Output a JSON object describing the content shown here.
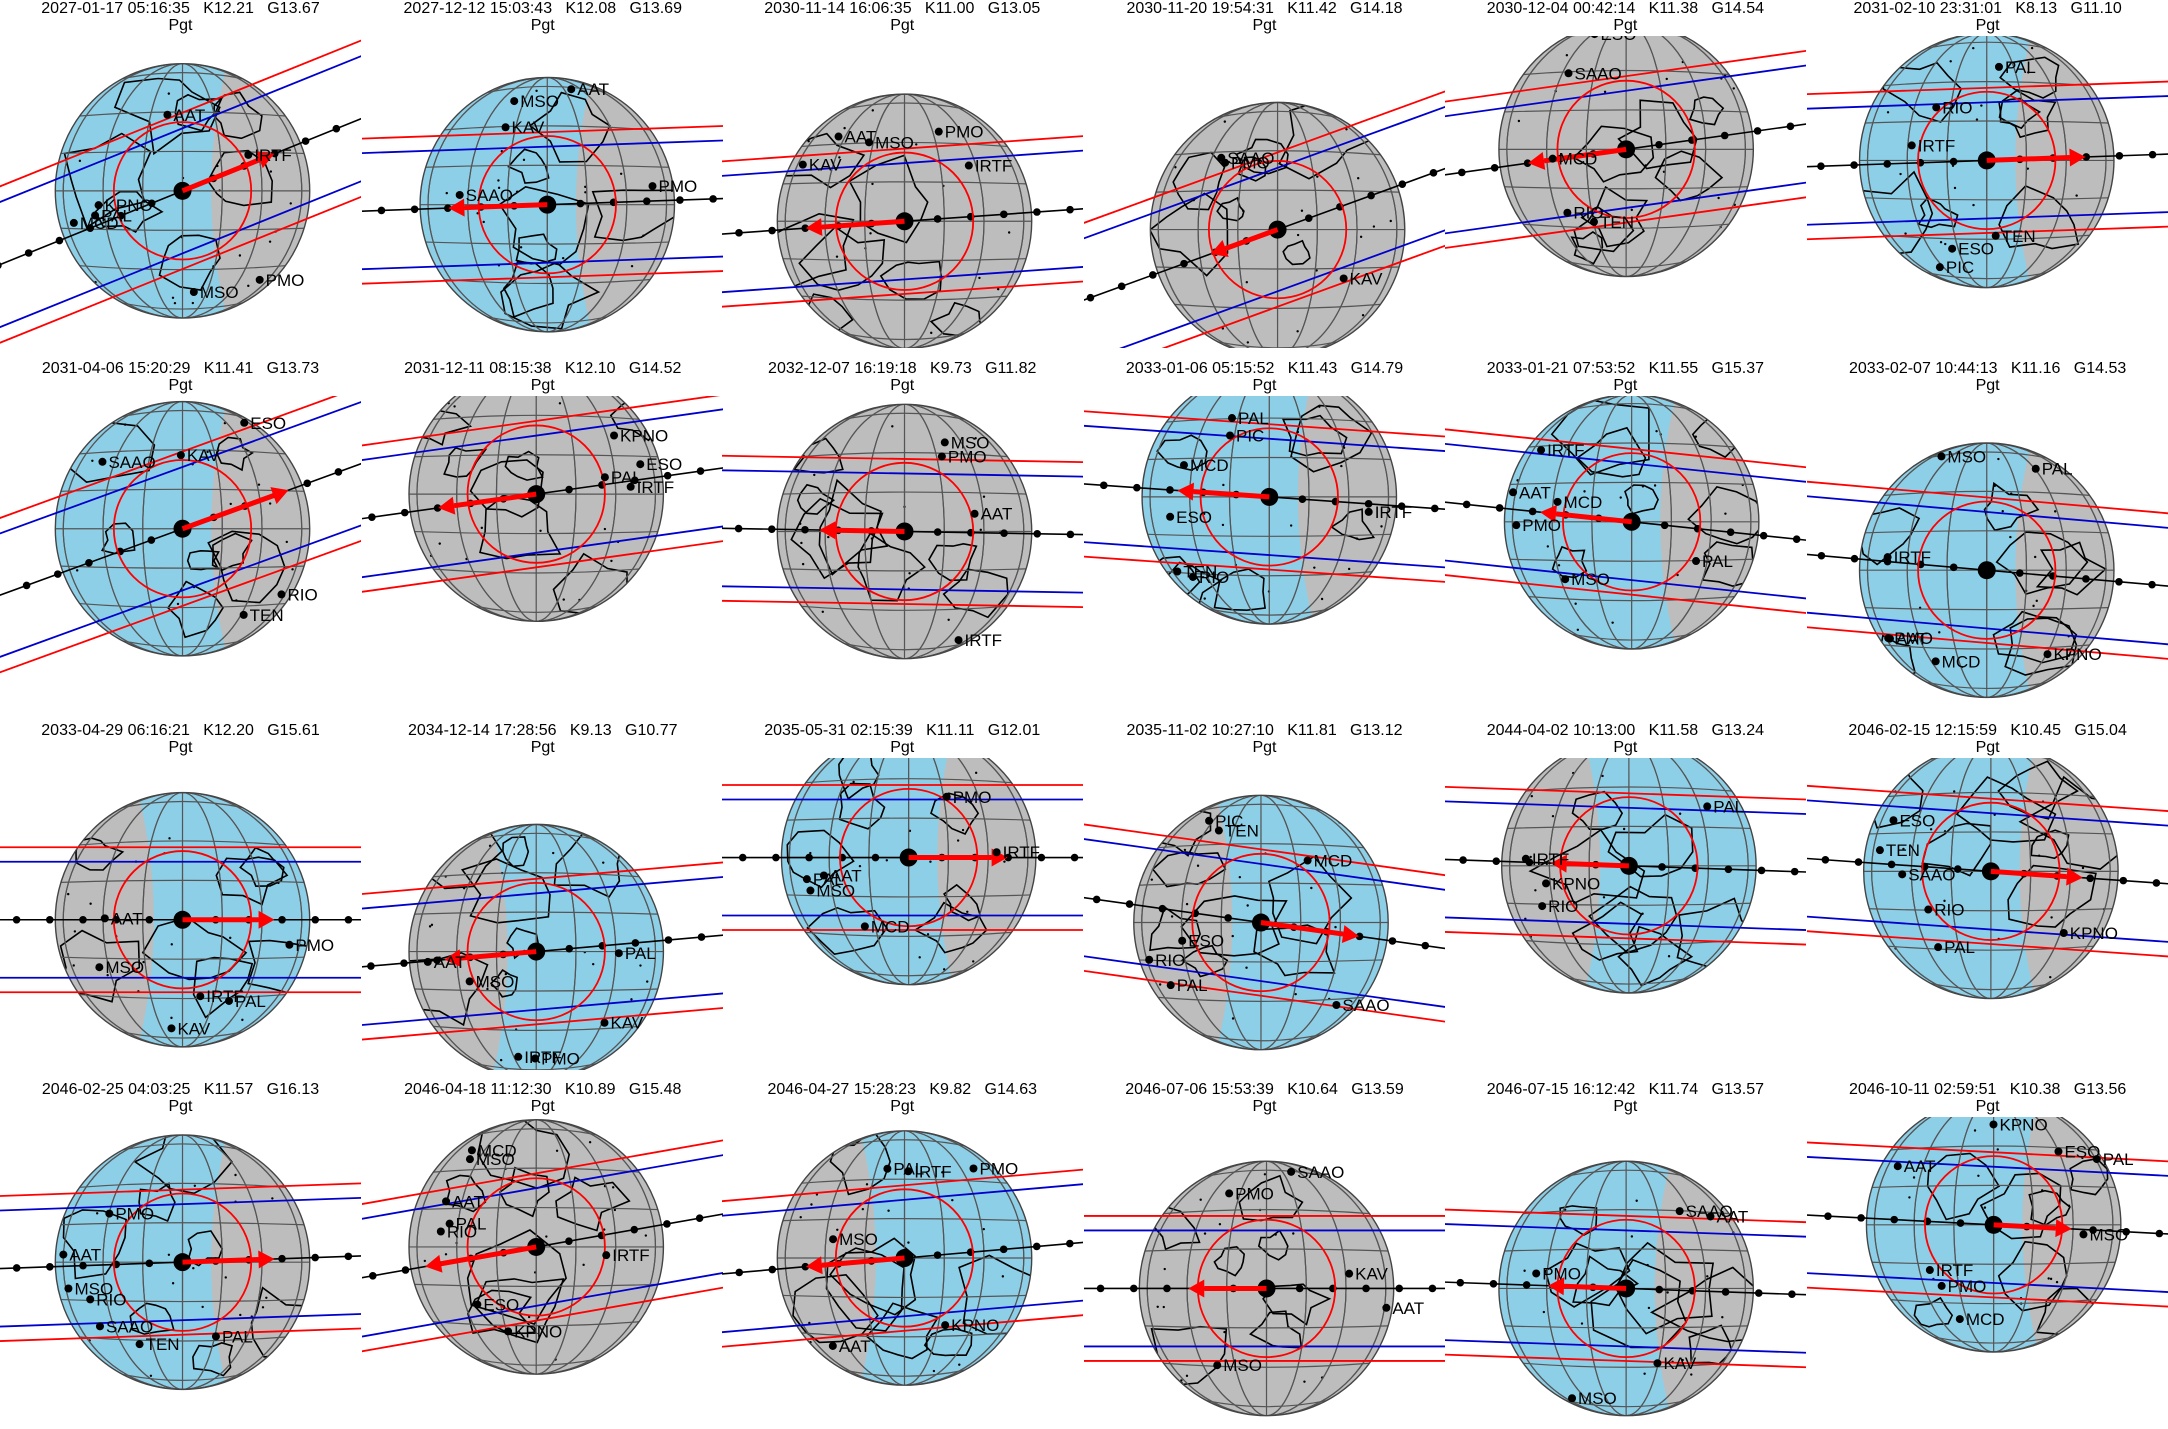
{
  "figure": {
    "colors": {
      "land_shadow": "#bebebe",
      "ocean": "#8ecfe8",
      "night_gray": "#bdbdbd",
      "graticule": "#555555",
      "path_line": "#000000",
      "limit_line": "#ff0000",
      "center_line": "#0000cc",
      "circle": "#ff0000",
      "arrow": "#ff0000"
    },
    "panels": [
      {
        "header": "2027-01-17 05:16:35   K12.21   G13.67",
        "object": "Pgt",
        "labels": [
          "PMO",
          "PAL",
          "MCD",
          "IRTF",
          "AAT",
          "MSO",
          "KPNO"
        ],
        "day_side": "left"
      },
      {
        "header": "2027-12-12 15:03:43   K12.08   G13.69",
        "object": "Pgt",
        "labels": [
          "PMO",
          "KAV",
          "SAAO",
          "AAT",
          "MSO"
        ],
        "day_side": "left"
      },
      {
        "header": "2030-11-14 16:06:35   K11.00   G13.05",
        "object": "Pgt",
        "labels": [
          "PMO",
          "IRTF",
          "KAV",
          "AAT",
          "MSO"
        ],
        "day_side": "none"
      },
      {
        "header": "2030-11-20 19:54:31   K11.42   G14.18",
        "object": "Pgt",
        "labels": [
          "PMO",
          "KAV",
          "SAAO"
        ],
        "day_side": "none"
      },
      {
        "header": "2030-12-04 00:42:14   K11.38   G14.54",
        "object": "Pgt",
        "labels": [
          "MCD",
          "TEN",
          "ESO",
          "RIO",
          "SAAO"
        ],
        "day_side": "none"
      },
      {
        "header": "2031-02-10 23:31:01   K8.13   G11.10",
        "object": "Pgt",
        "labels": [
          "PIC",
          "IRTF",
          "PAL",
          "TEN",
          "RIO",
          "ESO"
        ],
        "day_side": "left"
      },
      {
        "header": "2031-04-06 15:20:29   K11.41   G13.73",
        "object": "Pgt",
        "labels": [
          "TEN",
          "KAV",
          "ESO",
          "RIO",
          "SAAO"
        ],
        "day_side": "left"
      },
      {
        "header": "2031-12-11 08:15:38   K12.10   G14.52",
        "object": "Pgt",
        "labels": [
          "IRTF",
          "PAL",
          "KPNO",
          "ESO"
        ],
        "day_side": "none"
      },
      {
        "header": "2032-12-07 16:19:18   K9.73   G11.82",
        "object": "Pgt",
        "labels": [
          "PMO",
          "IRTF",
          "AAT",
          "MSO"
        ],
        "day_side": "none"
      },
      {
        "header": "2033-01-06 05:15:52   K11.43   G14.79",
        "object": "Pgt",
        "labels": [
          "PIC",
          "TEN",
          "IRTF",
          "PAL",
          "MCD",
          "RIO",
          "ESO"
        ],
        "day_side": "left"
      },
      {
        "header": "2033-01-21 07:53:52   K11.55   G15.37",
        "object": "Pgt",
        "labels": [
          "PMO",
          "IRTF",
          "PAL",
          "MCD",
          "AAT",
          "MSO"
        ],
        "day_side": "left"
      },
      {
        "header": "2033-02-07 10:44:13   K11.16   G14.53",
        "object": "Pgt",
        "labels": [
          "MCD",
          "PAL",
          "KPNO",
          "PMO",
          "IRTF",
          "AAT",
          "MSO"
        ],
        "day_side": "left"
      },
      {
        "header": "2033-04-29 06:16:21   K12.20   G15.61",
        "object": "Pgt",
        "labels": [
          "PAL",
          "PMO",
          "IRTF",
          "KAV",
          "AAT",
          "MSO"
        ],
        "day_side": "right"
      },
      {
        "header": "2034-12-14 17:28:56   K9.13   G10.77",
        "object": "Pgt",
        "labels": [
          "PAL",
          "PMO",
          "IRTF",
          "KAV",
          "AAT",
          "MSO"
        ],
        "day_side": "right"
      },
      {
        "header": "2035-05-31 02:15:39   K11.11   G12.01",
        "object": "Pgt",
        "labels": [
          "PMO",
          "PAL",
          "MCD",
          "IRTF",
          "AAT",
          "MSO"
        ],
        "day_side": "left"
      },
      {
        "header": "2035-11-02 10:27:10   K11.81   G13.12",
        "object": "Pgt",
        "labels": [
          "PIC",
          "TEN",
          "PAL",
          "MCD",
          "RIO",
          "ESO",
          "SAAO"
        ],
        "day_side": "right"
      },
      {
        "header": "2044-04-02 10:13:00   K11.58   G13.24",
        "object": "Pgt",
        "labels": [
          "IRTF",
          "PAL",
          "KPNO",
          "ESO",
          "RIO"
        ],
        "day_side": "right"
      },
      {
        "header": "2046-02-15 12:15:59   K10.45   G15.04",
        "object": "Pgt",
        "labels": [
          "PAL",
          "KPNO",
          "TEN",
          "ESO",
          "RIO",
          "SAAO"
        ],
        "day_side": "left"
      },
      {
        "header": "2046-02-25 04:03:25   K11.57   G16.13",
        "object": "Pgt",
        "labels": [
          "PAL",
          "TEN",
          "PMO",
          "RIO",
          "SAAO",
          "AAT",
          "MSO"
        ],
        "day_side": "left"
      },
      {
        "header": "2046-04-18 11:12:30   K10.89   G15.48",
        "object": "Pgt",
        "labels": [
          "IRTF",
          "PAL",
          "MCD",
          "KPNO",
          "ESO",
          "RIO",
          "AAT",
          "MSO"
        ],
        "day_side": "none"
      },
      {
        "header": "2046-04-27 15:28:23   K9.82   G14.63",
        "object": "Pgt",
        "labels": [
          "PMO",
          "IRTF",
          "PAL",
          "KPNO",
          "AAT",
          "MSO"
        ],
        "day_side": "right"
      },
      {
        "header": "2046-07-06 15:53:39   K10.64   G13.59",
        "object": "Pgt",
        "labels": [
          "PMO",
          "KAV",
          "SAAO",
          "AAT",
          "MSO"
        ],
        "day_side": "none"
      },
      {
        "header": "2046-07-15 16:12:42   K11.74   G13.57",
        "object": "Pgt",
        "labels": [
          "PMO",
          "KAV",
          "SAAO",
          "AAT",
          "MSO"
        ],
        "day_side": "left"
      },
      {
        "header": "2046-10-11 02:59:51   K10.38   G13.56",
        "object": "Pgt",
        "labels": [
          "PMO",
          "IRTF",
          "PAL",
          "KPNO",
          "MCD",
          "AAT",
          "MSO",
          "ESO"
        ],
        "day_side": "left"
      }
    ]
  }
}
